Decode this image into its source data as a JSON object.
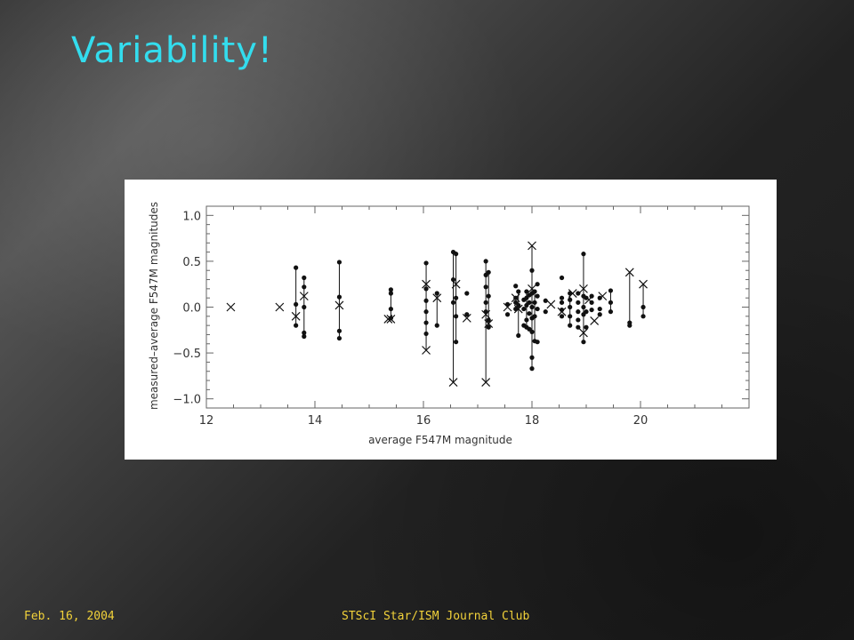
{
  "slide": {
    "title": "Variability!",
    "footer_left": "Feb. 16, 2004",
    "footer_center": "STScI Star/ISM Journal Club"
  },
  "colors": {
    "title": "#33ddee",
    "footer": "#f2d23a",
    "plot_background": "#ffffff",
    "marks": "#111111"
  },
  "chart_data": {
    "type": "scatter",
    "title": "",
    "xlabel": "average F547M magnitude",
    "ylabel": "measured–average F547M magnitudes",
    "xlim": [
      12,
      22
    ],
    "ylim": [
      -1.1,
      1.1
    ],
    "xticks": [
      12,
      14,
      16,
      18,
      20
    ],
    "yticks": [
      -1.0,
      -0.5,
      0.0,
      0.5,
      1.0
    ],
    "xtick_labels": [
      "12",
      "14",
      "16",
      "18",
      "20"
    ],
    "ytick_labels": [
      "−1.0",
      "−0.5",
      "0.0",
      "0.5",
      "1.0"
    ],
    "grid": false,
    "legend": "none",
    "series": [
      {
        "marker": "dot",
        "points": [
          [
            13.65,
            0.43
          ],
          [
            13.65,
            0.03
          ],
          [
            13.65,
            -0.2
          ],
          [
            13.8,
            0.32
          ],
          [
            13.8,
            0.22
          ],
          [
            13.8,
            0.0
          ],
          [
            13.8,
            -0.28
          ],
          [
            13.8,
            -0.32
          ],
          [
            14.45,
            0.49
          ],
          [
            14.45,
            0.11
          ],
          [
            14.45,
            -0.26
          ],
          [
            14.45,
            -0.34
          ],
          [
            15.4,
            0.19
          ],
          [
            15.4,
            0.15
          ],
          [
            15.4,
            -0.02
          ],
          [
            15.4,
            -0.12
          ],
          [
            16.05,
            0.48
          ],
          [
            16.05,
            0.2
          ],
          [
            16.05,
            0.07
          ],
          [
            16.05,
            -0.05
          ],
          [
            16.05,
            -0.17
          ],
          [
            16.05,
            -0.29
          ],
          [
            16.25,
            0.15
          ],
          [
            16.25,
            -0.2
          ],
          [
            16.55,
            0.6
          ],
          [
            16.55,
            0.3
          ],
          [
            16.55,
            0.05
          ],
          [
            16.6,
            0.58
          ],
          [
            16.6,
            0.1
          ],
          [
            16.6,
            -0.1
          ],
          [
            16.6,
            -0.38
          ],
          [
            16.8,
            0.15
          ],
          [
            16.8,
            -0.08
          ],
          [
            17.15,
            0.5
          ],
          [
            17.15,
            0.35
          ],
          [
            17.15,
            0.22
          ],
          [
            17.15,
            0.05
          ],
          [
            17.15,
            -0.05
          ],
          [
            17.2,
            0.38
          ],
          [
            17.2,
            0.12
          ],
          [
            17.2,
            -0.14
          ],
          [
            17.2,
            -0.22
          ],
          [
            17.55,
            0.03
          ],
          [
            17.55,
            -0.08
          ],
          [
            17.7,
            0.23
          ],
          [
            17.7,
            0.1
          ],
          [
            17.7,
            0.05
          ],
          [
            17.7,
            -0.02
          ],
          [
            17.75,
            0.17
          ],
          [
            17.75,
            0.02
          ],
          [
            17.75,
            -0.31
          ],
          [
            17.85,
            0.08
          ],
          [
            17.85,
            -0.02
          ],
          [
            17.85,
            -0.2
          ],
          [
            17.9,
            0.17
          ],
          [
            17.9,
            0.1
          ],
          [
            17.9,
            0.02
          ],
          [
            17.9,
            -0.14
          ],
          [
            17.9,
            -0.22
          ],
          [
            17.95,
            0.13
          ],
          [
            17.95,
            0.05
          ],
          [
            17.95,
            -0.07
          ],
          [
            17.95,
            -0.24
          ],
          [
            18.0,
            0.4
          ],
          [
            18.0,
            0.15
          ],
          [
            18.0,
            0.0
          ],
          [
            18.0,
            -0.12
          ],
          [
            18.0,
            -0.27
          ],
          [
            18.0,
            -0.55
          ],
          [
            18.0,
            -0.67
          ],
          [
            18.05,
            0.17
          ],
          [
            18.05,
            0.05
          ],
          [
            18.05,
            -0.1
          ],
          [
            18.05,
            -0.37
          ],
          [
            18.1,
            0.25
          ],
          [
            18.1,
            0.12
          ],
          [
            18.1,
            -0.02
          ],
          [
            18.1,
            -0.38
          ],
          [
            18.25,
            0.07
          ],
          [
            18.25,
            -0.05
          ],
          [
            18.55,
            0.32
          ],
          [
            18.55,
            0.1
          ],
          [
            18.55,
            0.05
          ],
          [
            18.55,
            -0.03
          ],
          [
            18.55,
            -0.1
          ],
          [
            18.7,
            0.15
          ],
          [
            18.7,
            0.08
          ],
          [
            18.7,
            0.0
          ],
          [
            18.7,
            -0.1
          ],
          [
            18.7,
            -0.2
          ],
          [
            18.85,
            0.15
          ],
          [
            18.85,
            0.05
          ],
          [
            18.85,
            -0.05
          ],
          [
            18.85,
            -0.14
          ],
          [
            18.85,
            -0.22
          ],
          [
            18.95,
            0.58
          ],
          [
            18.95,
            0.12
          ],
          [
            18.95,
            0.0
          ],
          [
            18.95,
            -0.08
          ],
          [
            18.95,
            -0.38
          ],
          [
            19.0,
            0.1
          ],
          [
            19.0,
            -0.05
          ],
          [
            19.0,
            -0.22
          ],
          [
            19.1,
            0.12
          ],
          [
            19.1,
            0.05
          ],
          [
            19.1,
            -0.03
          ],
          [
            19.25,
            0.1
          ],
          [
            19.25,
            -0.02
          ],
          [
            19.25,
            -0.08
          ],
          [
            19.45,
            0.18
          ],
          [
            19.45,
            0.05
          ],
          [
            19.45,
            -0.05
          ],
          [
            19.8,
            -0.17
          ],
          [
            19.8,
            -0.2
          ],
          [
            20.05,
            0.0
          ],
          [
            20.05,
            -0.1
          ]
        ]
      },
      {
        "marker": "x",
        "points": [
          [
            12.45,
            0.0
          ],
          [
            13.35,
            0.0
          ],
          [
            13.65,
            -0.1
          ],
          [
            13.8,
            0.12
          ],
          [
            14.45,
            0.02
          ],
          [
            15.35,
            -0.13
          ],
          [
            15.4,
            -0.13
          ],
          [
            16.05,
            0.25
          ],
          [
            16.05,
            -0.47
          ],
          [
            16.25,
            0.1
          ],
          [
            16.55,
            -0.82
          ],
          [
            16.6,
            0.25
          ],
          [
            16.8,
            -0.12
          ],
          [
            17.15,
            -0.08
          ],
          [
            17.15,
            -0.82
          ],
          [
            17.2,
            -0.18
          ],
          [
            17.55,
            0.0
          ],
          [
            17.7,
            0.1
          ],
          [
            17.75,
            -0.02
          ],
          [
            18.0,
            0.67
          ],
          [
            18.0,
            0.2
          ],
          [
            18.35,
            0.03
          ],
          [
            18.55,
            -0.05
          ],
          [
            18.75,
            0.15
          ],
          [
            18.95,
            0.2
          ],
          [
            18.95,
            -0.28
          ],
          [
            19.05,
            0.08
          ],
          [
            19.15,
            -0.15
          ],
          [
            19.3,
            0.12
          ],
          [
            19.8,
            0.38
          ],
          [
            20.05,
            0.25
          ]
        ]
      }
    ],
    "error_bars": [
      [
        13.65,
        -0.2,
        0.43
      ],
      [
        13.8,
        -0.32,
        0.32
      ],
      [
        14.45,
        -0.34,
        0.49
      ],
      [
        15.4,
        -0.12,
        0.19
      ],
      [
        16.05,
        -0.47,
        0.48
      ],
      [
        16.25,
        -0.2,
        0.15
      ],
      [
        16.55,
        -0.82,
        0.6
      ],
      [
        16.6,
        -0.38,
        0.58
      ],
      [
        17.15,
        -0.82,
        0.5
      ],
      [
        17.2,
        -0.22,
        0.38
      ],
      [
        17.75,
        -0.31,
        0.17
      ],
      [
        17.9,
        -0.22,
        0.17
      ],
      [
        18.0,
        -0.67,
        0.67
      ],
      [
        18.05,
        -0.37,
        0.17
      ],
      [
        18.7,
        -0.2,
        0.15
      ],
      [
        18.95,
        -0.38,
        0.58
      ],
      [
        19.45,
        -0.05,
        0.18
      ],
      [
        19.8,
        -0.2,
        0.38
      ],
      [
        20.05,
        -0.1,
        0.25
      ]
    ]
  }
}
